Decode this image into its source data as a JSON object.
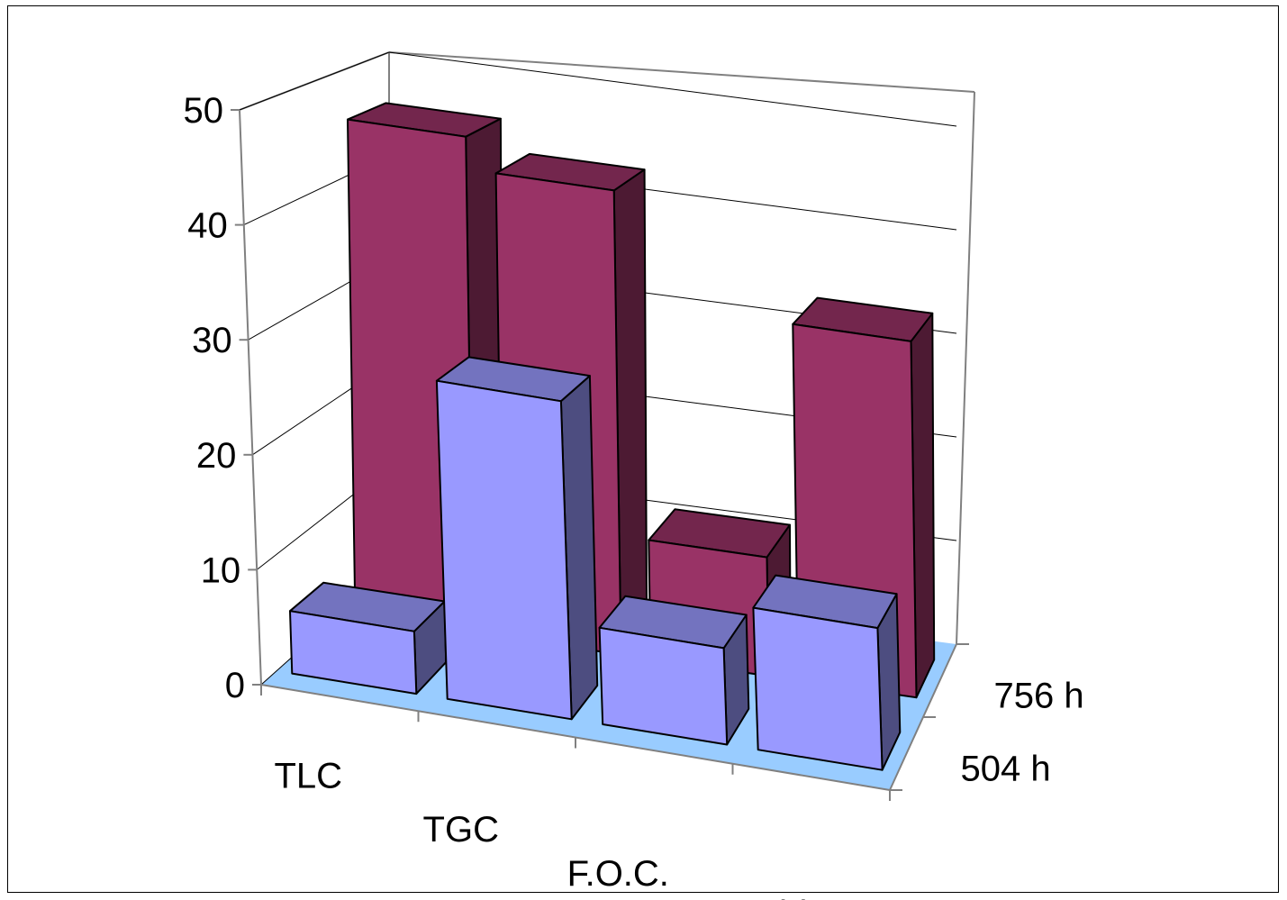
{
  "chart_data": {
    "type": "bar",
    "subtype": "3d-clustered-depth",
    "title": "",
    "xlabel": "",
    "ylabel": "",
    "categories": [
      "TLC",
      "TGC",
      "F.O.C.",
      "Oxid IR"
    ],
    "series": [
      {
        "name": "504 h",
        "values": [
          5.5,
          28,
          8.5,
          12.5
        ],
        "color": "#9999FF"
      },
      {
        "name": "756 h",
        "values": [
          46,
          43,
          11,
          33
        ],
        "color": "#993366"
      }
    ],
    "ylim": [
      0,
      50
    ],
    "yticks": [
      "0",
      "10",
      "20",
      "30",
      "40",
      "50"
    ],
    "grid": true,
    "floor_color": "#99CCFF",
    "legend": "none"
  }
}
